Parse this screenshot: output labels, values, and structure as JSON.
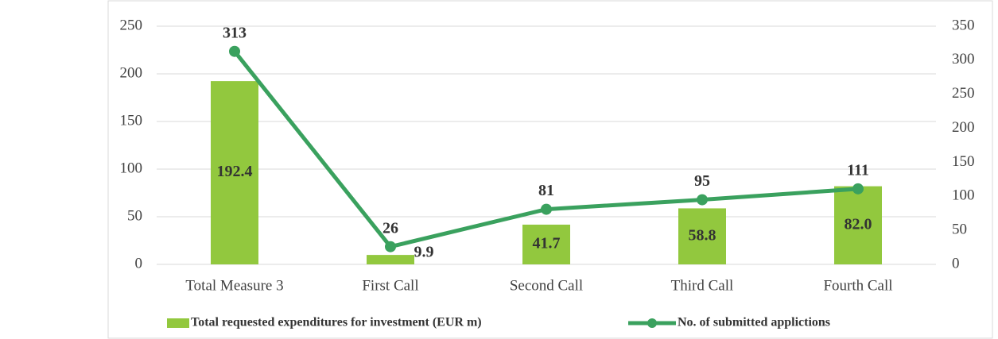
{
  "chart_data": {
    "type": "combo",
    "categories": [
      "Total Measure 3",
      "First Call",
      "Second Call",
      "Third Call",
      "Fourth Call"
    ],
    "series": [
      {
        "name": "Total requested expenditures for investment (EUR m)",
        "color": "#92c83e",
        "type": "bar",
        "values": [
          192.4,
          9.9,
          41.7,
          58.8,
          82.0
        ],
        "value_labels": [
          "192.4",
          "9.9",
          "41.7",
          "58.8",
          "82.0"
        ]
      },
      {
        "name": "No. of submitted applictions",
        "color": "#3aa15e",
        "type": "line",
        "axis": "y2",
        "values": [
          313,
          26,
          81,
          95,
          111
        ]
      }
    ],
    "ylim": [
      0,
      250
    ],
    "yticks": [
      0,
      50,
      100,
      150,
      200,
      250
    ],
    "y2lim": [
      0,
      350
    ],
    "y2ticks": [
      0,
      50,
      100,
      150,
      200,
      250,
      300,
      350
    ],
    "grid": true,
    "legend": "bottom"
  }
}
